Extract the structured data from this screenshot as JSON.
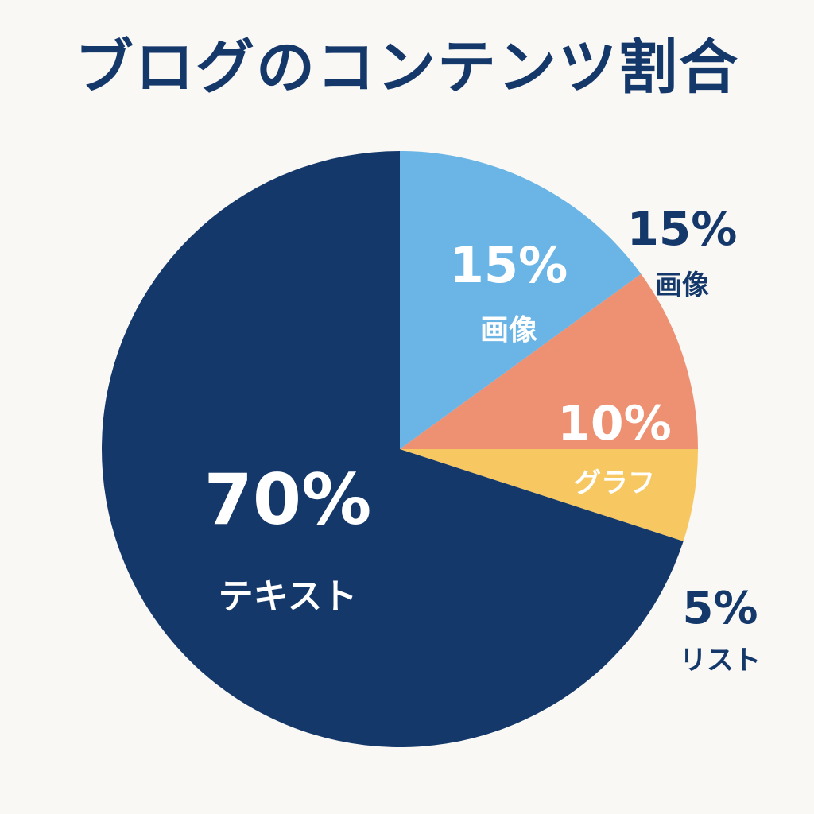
{
  "chart_data": {
    "type": "pie",
    "title": "ブログのコンテンツ割合",
    "slices": [
      {
        "label": "画像",
        "value": 15,
        "value_label": "15%",
        "color": "#6ab5e6"
      },
      {
        "label": "グラフ",
        "value": 10,
        "value_label": "10%",
        "color": "#ee9173"
      },
      {
        "label": "リスト",
        "value": 5,
        "value_label": "5%",
        "color": "#f7c862"
      },
      {
        "label": "テキスト",
        "value": 70,
        "value_label": "70%",
        "color": "#15386b"
      }
    ],
    "start_angle_deg": 0,
    "direction": "clockwise",
    "outside_labels": [
      {
        "label": "画像",
        "value_label": "15%"
      },
      {
        "label": "リスト",
        "value_label": "5%"
      }
    ],
    "legend": "none",
    "text_color": "#15386b"
  }
}
